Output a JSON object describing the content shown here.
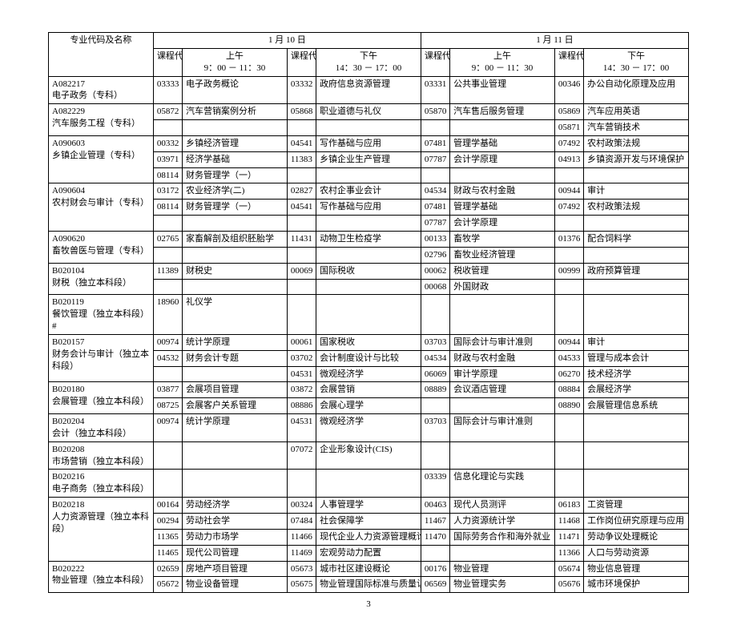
{
  "page_number": "3",
  "header": {
    "major_label": "专业代码及名称",
    "days": [
      "1 月 10 日",
      "1 月 11 日"
    ],
    "slot_labels": [
      "课程代码",
      "上午",
      "课程代码",
      "下午",
      "课程代码",
      "上午",
      "课程代码",
      "下午"
    ],
    "time_labels": [
      "9：00 － 11：30",
      "14：30 － 17：00",
      "9：00 － 11：30",
      "14：30 － 17：00"
    ]
  },
  "rows": [
    {
      "major": "A082217\n电子政务（专科）",
      "c1": [
        [
          "03333",
          "电子政务概论"
        ]
      ],
      "c2": [
        [
          "03332",
          "政府信息资源管理"
        ]
      ],
      "c3": [
        [
          "03331",
          "公共事业管理"
        ]
      ],
      "c4": [
        [
          "00346",
          "办公自动化原理及应用"
        ]
      ]
    },
    {
      "major": "A082229\n汽车服务工程（专科）",
      "c1": [
        [
          "05872",
          "汽车营销案例分析"
        ]
      ],
      "c2": [
        [
          "05868",
          "职业道德与礼仪"
        ]
      ],
      "c3": [
        [
          "05870",
          "汽车售后服务管理"
        ]
      ],
      "c4": [
        [
          "05869",
          "汽车应用英语"
        ],
        [
          "05871",
          "汽车营销技术"
        ]
      ]
    },
    {
      "major": "A090603\n乡镇企业管理（专科）",
      "c1": [
        [
          "00332",
          "乡镇经济管理"
        ],
        [
          "03971",
          "经济学基础"
        ],
        [
          "08114",
          "财务管理学（一）"
        ]
      ],
      "c2": [
        [
          "04541",
          "写作基础与应用"
        ],
        [
          "11383",
          "乡镇企业生产管理"
        ]
      ],
      "c3": [
        [
          "07481",
          "管理学基础"
        ],
        [
          "07787",
          "会计学原理"
        ]
      ],
      "c4": [
        [
          "07492",
          "农村政策法规"
        ],
        [
          "04913",
          "乡镇资源开发与环境保护"
        ]
      ]
    },
    {
      "major": "A090604\n农村财会与审计（专科）",
      "c1": [
        [
          "03172",
          "农业经济学(二)"
        ],
        [
          "08114",
          "财务管理学（一）"
        ]
      ],
      "c2": [
        [
          "02827",
          "农村企事业会计"
        ],
        [
          "04541",
          "写作基础与应用"
        ]
      ],
      "c3": [
        [
          "04534",
          "财政与农村金融"
        ],
        [
          "07481",
          "管理学基础"
        ],
        [
          "07787",
          "会计学原理"
        ]
      ],
      "c4": [
        [
          "00944",
          "审计"
        ],
        [
          "07492",
          "农村政策法规"
        ]
      ]
    },
    {
      "major": "A090620\n畜牧兽医与管理（专科）",
      "c1": [
        [
          "02765",
          "家畜解剖及组织胚胎学"
        ]
      ],
      "c2": [
        [
          "11431",
          "动物卫生检疫学"
        ]
      ],
      "c3": [
        [
          "00133",
          "畜牧学"
        ],
        [
          "02796",
          "畜牧业经济管理"
        ]
      ],
      "c4": [
        [
          "01376",
          "配合饲料学"
        ]
      ]
    },
    {
      "major": "B020104\n财税（独立本科段）",
      "c1": [
        [
          "11389",
          "财税史"
        ]
      ],
      "c2": [
        [
          "00069",
          "国际税收"
        ]
      ],
      "c3": [
        [
          "00062",
          "税收管理"
        ],
        [
          "00068",
          "外国财政"
        ]
      ],
      "c4": [
        [
          "00999",
          "政府预算管理"
        ]
      ]
    },
    {
      "major": "B020119\n餐饮管理（独立本科段）#",
      "c1": [
        [
          "18960",
          "礼仪学"
        ]
      ],
      "c2": [],
      "c3": [],
      "c4": []
    },
    {
      "major": "B020157\n财务会计与审计（独立本科段）",
      "c1": [
        [
          "00974",
          "统计学原理"
        ],
        [
          "04532",
          "财务会计专题"
        ]
      ],
      "c2": [
        [
          "00061",
          "国家税收"
        ],
        [
          "03702",
          "会计制度设计与比较"
        ],
        [
          "04531",
          "微观经济学"
        ]
      ],
      "c3": [
        [
          "03703",
          "国际会计与审计准则"
        ],
        [
          "04534",
          "财政与农村金融"
        ],
        [
          "06069",
          "审计学原理"
        ]
      ],
      "c4": [
        [
          "00944",
          "审计"
        ],
        [
          "04533",
          "管理与成本会计"
        ],
        [
          "06270",
          "技术经济学"
        ]
      ]
    },
    {
      "major": "B020180\n会展管理（独立本科段）",
      "c1": [
        [
          "03877",
          "会展项目管理"
        ],
        [
          "08725",
          "会展客户关系管理"
        ]
      ],
      "c2": [
        [
          "03872",
          "会展营销"
        ],
        [
          "08886",
          "会展心理学"
        ]
      ],
      "c3": [
        [
          "08889",
          "会议酒店管理"
        ]
      ],
      "c4": [
        [
          "08884",
          "会展经济学"
        ],
        [
          "08890",
          "会展管理信息系统"
        ]
      ]
    },
    {
      "major": "B020204\n会计（独立本科段）",
      "c1": [
        [
          "00974",
          "统计学原理"
        ]
      ],
      "c2": [
        [
          "04531",
          "微观经济学"
        ]
      ],
      "c3": [
        [
          "03703",
          "国际会计与审计准则"
        ]
      ],
      "c4": []
    },
    {
      "major": "B020208\n市场营销（独立本科段）",
      "c1": [],
      "c2": [
        [
          "07072",
          "企业形象设计(CIS)"
        ]
      ],
      "c3": [],
      "c4": []
    },
    {
      "major": "B020216\n电子商务（独立本科段）",
      "c1": [],
      "c2": [],
      "c3": [
        [
          "03339",
          "信息化理论与实践"
        ]
      ],
      "c4": []
    },
    {
      "major": "B020218\n人力资源管理（独立本科段）",
      "c1": [
        [
          "00164",
          "劳动经济学"
        ],
        [
          "00294",
          "劳动社会学"
        ],
        [
          "11365",
          "劳动力市场学"
        ],
        [
          "11465",
          "现代公司管理"
        ]
      ],
      "c2": [
        [
          "00324",
          "人事管理学"
        ],
        [
          "07484",
          "社会保障学"
        ],
        [
          "11466",
          "现代企业人力资源管理概论"
        ],
        [
          "11469",
          "宏观劳动力配置"
        ]
      ],
      "c3": [
        [
          "00463",
          "现代人员测评"
        ],
        [
          "11467",
          "人力资源统计学"
        ],
        [
          "11470",
          "国际劳务合作和海外就业"
        ]
      ],
      "c4": [
        [
          "06183",
          "工资管理"
        ],
        [
          "11468",
          "工作岗位研究原理与应用"
        ],
        [
          "11471",
          "劳动争议处理概论"
        ],
        [
          "11366",
          "人口与劳动资源"
        ]
      ]
    },
    {
      "major": "B020222\n物业管理（独立本科段）",
      "c1": [
        [
          "02659",
          "房地产项目管理"
        ],
        [
          "05672",
          "物业设备管理"
        ]
      ],
      "c2": [
        [
          "05673",
          "城市社区建设概论"
        ],
        [
          "05675",
          "物业管理国际标准与质量认"
        ]
      ],
      "c3": [
        [
          "00176",
          "物业管理"
        ],
        [
          "06569",
          "物业管理实务"
        ]
      ],
      "c4": [
        [
          "05674",
          "物业信息管理"
        ],
        [
          "05676",
          "城市环境保护"
        ]
      ]
    }
  ]
}
